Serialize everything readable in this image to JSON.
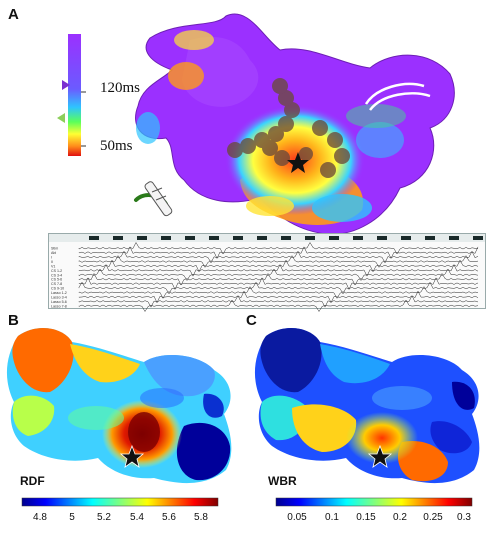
{
  "panels": {
    "a": {
      "letter": "A",
      "scale_high": "120ms",
      "scale_low": "50ms",
      "ecg_channel_labels": [
        "Stim",
        "Abl",
        "I",
        "II",
        "V1",
        "CS 1-2",
        "CS 3-4",
        "CS 5-6",
        "CS 7-8",
        "CS 9-10",
        "Lasso 1-2",
        "Lasso 3-4",
        "Lasso 5-6",
        "Lasso 7-8"
      ]
    },
    "b": {
      "letter": "B",
      "map_label": "RDF",
      "colorbar_ticks": [
        "4.8",
        "5",
        "5.2",
        "5.4",
        "5.6",
        "5.8"
      ]
    },
    "c": {
      "letter": "C",
      "map_label": "WBR",
      "colorbar_ticks": [
        "0.05",
        "0.1",
        "0.15",
        "0.2",
        "0.25",
        "0.3"
      ]
    }
  },
  "colors": {
    "lat_purple": "#8b2fe0",
    "lat_red": "#e01010",
    "jet_dark_blue": "#00008f",
    "jet_red": "#a00000"
  }
}
